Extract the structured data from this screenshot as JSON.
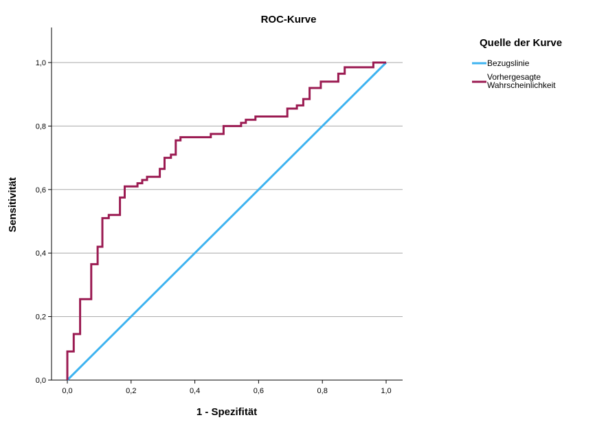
{
  "chart_data": {
    "type": "line",
    "title": "ROC-Kurve",
    "xlabel": "1 - Spezifität",
    "ylabel": "Sensitivität",
    "xlim": [
      0,
      1
    ],
    "ylim": [
      0,
      1
    ],
    "x_ticks": [
      "0,0",
      "0,2",
      "0,4",
      "0,6",
      "0,8",
      "1,0"
    ],
    "y_ticks": [
      "0,0",
      "0,2",
      "0,4",
      "0,6",
      "0,8",
      "1,0"
    ],
    "grid": "horizontal",
    "legend": {
      "title": "Quelle der Kurve",
      "placement": "top-right",
      "entries": [
        {
          "label": "Bezugslinie",
          "color": "#3EB3F0"
        },
        {
          "label_lines": [
            "Vorhergesagte",
            "Wahrscheinlichkeit"
          ],
          "color": "#9B1B52"
        }
      ]
    },
    "series": [
      {
        "name": "Bezugslinie",
        "color": "#3EB3F0",
        "points": [
          [
            0,
            0
          ],
          [
            1,
            1
          ]
        ]
      },
      {
        "name": "Vorhergesagte Wahrscheinlichkeit",
        "color": "#9B1B52",
        "step": true,
        "points": [
          [
            0.0,
            0.0
          ],
          [
            0.0,
            0.09
          ],
          [
            0.02,
            0.09
          ],
          [
            0.02,
            0.145
          ],
          [
            0.04,
            0.145
          ],
          [
            0.04,
            0.255
          ],
          [
            0.075,
            0.255
          ],
          [
            0.075,
            0.365
          ],
          [
            0.095,
            0.365
          ],
          [
            0.095,
            0.42
          ],
          [
            0.11,
            0.42
          ],
          [
            0.11,
            0.51
          ],
          [
            0.13,
            0.51
          ],
          [
            0.13,
            0.52
          ],
          [
            0.165,
            0.52
          ],
          [
            0.165,
            0.575
          ],
          [
            0.18,
            0.575
          ],
          [
            0.18,
            0.61
          ],
          [
            0.22,
            0.61
          ],
          [
            0.22,
            0.62
          ],
          [
            0.235,
            0.62
          ],
          [
            0.235,
            0.63
          ],
          [
            0.25,
            0.63
          ],
          [
            0.25,
            0.64
          ],
          [
            0.29,
            0.64
          ],
          [
            0.29,
            0.665
          ],
          [
            0.305,
            0.665
          ],
          [
            0.305,
            0.7
          ],
          [
            0.325,
            0.7
          ],
          [
            0.325,
            0.71
          ],
          [
            0.34,
            0.71
          ],
          [
            0.34,
            0.755
          ],
          [
            0.355,
            0.755
          ],
          [
            0.355,
            0.765
          ],
          [
            0.45,
            0.765
          ],
          [
            0.45,
            0.775
          ],
          [
            0.49,
            0.775
          ],
          [
            0.49,
            0.8
          ],
          [
            0.545,
            0.8
          ],
          [
            0.545,
            0.81
          ],
          [
            0.56,
            0.81
          ],
          [
            0.56,
            0.82
          ],
          [
            0.59,
            0.82
          ],
          [
            0.59,
            0.83
          ],
          [
            0.69,
            0.83
          ],
          [
            0.69,
            0.855
          ],
          [
            0.72,
            0.855
          ],
          [
            0.72,
            0.865
          ],
          [
            0.74,
            0.865
          ],
          [
            0.74,
            0.885
          ],
          [
            0.76,
            0.885
          ],
          [
            0.76,
            0.92
          ],
          [
            0.795,
            0.92
          ],
          [
            0.795,
            0.94
          ],
          [
            0.85,
            0.94
          ],
          [
            0.85,
            0.965
          ],
          [
            0.87,
            0.965
          ],
          [
            0.87,
            0.985
          ],
          [
            0.96,
            0.985
          ],
          [
            0.96,
            1.0
          ],
          [
            1.0,
            1.0
          ]
        ]
      }
    ]
  }
}
